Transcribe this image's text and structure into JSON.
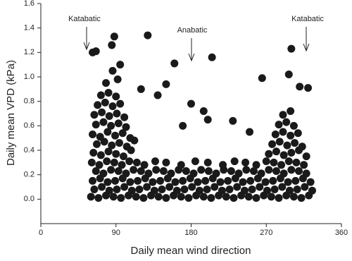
{
  "chart_data": {
    "type": "scatter",
    "xlabel": "Daily mean wind direction",
    "ylabel": "Daily mean VPD (kPa)",
    "color": "#1a1a1a",
    "xlim": [
      0,
      360
    ],
    "xticks": [
      0,
      90,
      180,
      270,
      360
    ],
    "ylim": [
      -0.2,
      1.6
    ],
    "yticks": [
      {
        "value": 0,
        "label": "0.0"
      },
      {
        "value": 0.2,
        "label": "0.2"
      },
      {
        "value": 0.4,
        "label": "0.4"
      },
      {
        "value": 0.6,
        "label": "0.6"
      },
      {
        "value": 0.8,
        "label": "0.8"
      },
      {
        "value": 1.0,
        "label": "1.0"
      },
      {
        "value": 1.2,
        "label": "1.2"
      },
      {
        "value": 1.4,
        "label": "1.4"
      },
      {
        "value": 1.6,
        "label": "1.6"
      }
    ],
    "annotations": [
      "Katabatic",
      "Anabatic",
      "Katabatic"
    ],
    "x": [
      60,
      69,
      78,
      87,
      96,
      105,
      114,
      123,
      132,
      141,
      150,
      159,
      168,
      177,
      186,
      195,
      204,
      213,
      222,
      231,
      240,
      249,
      258,
      267,
      276,
      285,
      294,
      303,
      312,
      321,
      64,
      73,
      82,
      91,
      100,
      109,
      118,
      127,
      136,
      145,
      154,
      163,
      172,
      181,
      190,
      199,
      208,
      217,
      226,
      235,
      244,
      253,
      262,
      271,
      280,
      289,
      298,
      307,
      316,
      325,
      62,
      71,
      80,
      89,
      98,
      107,
      116,
      125,
      134,
      143,
      152,
      161,
      170,
      179,
      188,
      197,
      206,
      215,
      224,
      233,
      242,
      251,
      260,
      269,
      278,
      287,
      296,
      305,
      314,
      323,
      66,
      75,
      84,
      93,
      102,
      111,
      120,
      129,
      138,
      147,
      156,
      165,
      174,
      183,
      192,
      201,
      210,
      219,
      228,
      237,
      246,
      255,
      264,
      273,
      282,
      291,
      300,
      309,
      318,
      61,
      70,
      79,
      88,
      97,
      106,
      115,
      124,
      137,
      150,
      168,
      185,
      200,
      218,
      232,
      245,
      258,
      270,
      279,
      288,
      297,
      306,
      315,
      63,
      72,
      81,
      90,
      99,
      108,
      67,
      76,
      85,
      94,
      103,
      112,
      62,
      71,
      80,
      89,
      98,
      107,
      66,
      75,
      84,
      93,
      102,
      64,
      73,
      82,
      91,
      100,
      68,
      77,
      86,
      95,
      72,
      81,
      90,
      78,
      86,
      92,
      273,
      282,
      291,
      300,
      309,
      318,
      277,
      286,
      295,
      304,
      313,
      281,
      290,
      299,
      308,
      285,
      294,
      303,
      290,
      299,
      62,
      66,
      88,
      128,
      160,
      205,
      300,
      297,
      265,
      180,
      195,
      200,
      230,
      150,
      140,
      85,
      95,
      120,
      250,
      310,
      320,
      170
    ],
    "y": [
      0.02,
      0.01,
      0.03,
      0.02,
      0.01,
      0.03,
      0.02,
      0.01,
      0.03,
      0.02,
      0.01,
      0.03,
      0.02,
      0.01,
      0.03,
      0.02,
      0.01,
      0.03,
      0.02,
      0.01,
      0.03,
      0.02,
      0.01,
      0.03,
      0.02,
      0.01,
      0.03,
      0.02,
      0.01,
      0.03,
      0.08,
      0.1,
      0.07,
      0.08,
      0.1,
      0.07,
      0.08,
      0.1,
      0.07,
      0.08,
      0.1,
      0.07,
      0.08,
      0.1,
      0.07,
      0.08,
      0.1,
      0.07,
      0.08,
      0.1,
      0.07,
      0.08,
      0.1,
      0.07,
      0.08,
      0.1,
      0.07,
      0.08,
      0.1,
      0.07,
      0.15,
      0.17,
      0.14,
      0.15,
      0.17,
      0.14,
      0.15,
      0.17,
      0.14,
      0.15,
      0.17,
      0.14,
      0.15,
      0.17,
      0.14,
      0.15,
      0.17,
      0.14,
      0.15,
      0.17,
      0.14,
      0.15,
      0.17,
      0.14,
      0.15,
      0.17,
      0.14,
      0.15,
      0.17,
      0.14,
      0.23,
      0.21,
      0.24,
      0.23,
      0.21,
      0.24,
      0.23,
      0.21,
      0.24,
      0.23,
      0.21,
      0.24,
      0.23,
      0.21,
      0.24,
      0.23,
      0.21,
      0.24,
      0.23,
      0.21,
      0.24,
      0.23,
      0.21,
      0.24,
      0.23,
      0.21,
      0.24,
      0.23,
      0.21,
      0.3,
      0.28,
      0.31,
      0.3,
      0.28,
      0.31,
      0.3,
      0.28,
      0.31,
      0.3,
      0.28,
      0.31,
      0.3,
      0.28,
      0.31,
      0.3,
      0.28,
      0.31,
      0.3,
      0.28,
      0.31,
      0.3,
      0.28,
      0.38,
      0.36,
      0.39,
      0.37,
      0.35,
      0.4,
      0.45,
      0.47,
      0.44,
      0.46,
      0.43,
      0.48,
      0.53,
      0.51,
      0.55,
      0.52,
      0.54,
      0.5,
      0.61,
      0.63,
      0.6,
      0.62,
      0.59,
      0.69,
      0.71,
      0.68,
      0.7,
      0.67,
      0.77,
      0.79,
      0.76,
      0.78,
      0.85,
      0.87,
      0.84,
      0.95,
      1.05,
      0.98,
      0.37,
      0.39,
      0.36,
      0.38,
      0.4,
      0.35,
      0.45,
      0.47,
      0.44,
      0.46,
      0.43,
      0.53,
      0.55,
      0.52,
      0.54,
      0.61,
      0.63,
      0.6,
      0.69,
      0.72,
      1.2,
      1.21,
      1.33,
      1.34,
      1.11,
      1.16,
      1.23,
      1.02,
      0.99,
      0.78,
      0.72,
      0.65,
      0.64,
      0.94,
      0.85,
      1.26,
      1.1,
      0.9,
      0.55,
      0.92,
      0.91,
      0.6
    ]
  }
}
